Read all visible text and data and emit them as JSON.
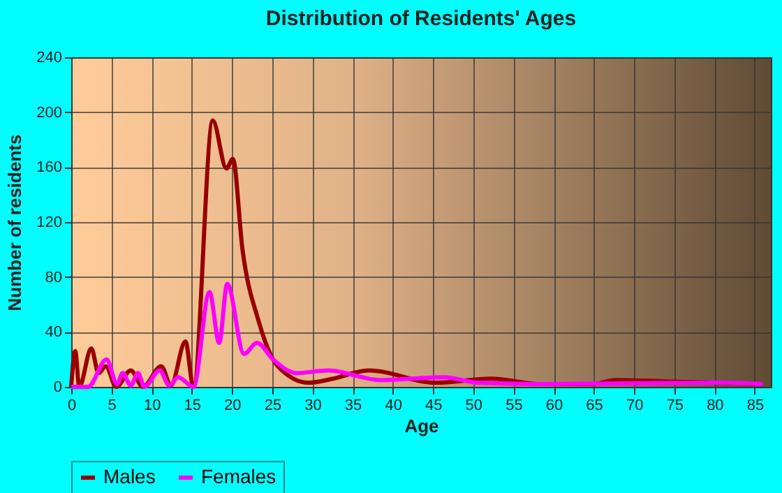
{
  "chart_data": {
    "type": "line",
    "title": "Distribution of Residents' Ages",
    "xlabel": "Age",
    "ylabel": "Number of residents",
    "xlim": [
      0,
      87
    ],
    "xticks": [
      0,
      5,
      10,
      15,
      20,
      25,
      30,
      35,
      40,
      45,
      50,
      55,
      60,
      65,
      70,
      75,
      80,
      85
    ],
    "ylim": [
      0,
      240
    ],
    "yticks": [
      0,
      40,
      80,
      120,
      160,
      200,
      240
    ],
    "grid": true,
    "legend": "bottom",
    "line_style": "solid",
    "marker": "none",
    "series": [
      {
        "name": "Males",
        "color": "#990000",
        "x": [
          0,
          0.5,
          1,
          2.5,
          3.4,
          4.3,
          5.6,
          7.4,
          8.9,
          11.2,
          12.4,
          14.2,
          15.2,
          17.6,
          19.3,
          20.1,
          21.3,
          23.3,
          25.7,
          29.5,
          32.6,
          37,
          45.3,
          52.2,
          58.5,
          64.8,
          67.7,
          74,
          86
        ],
        "values": [
          0,
          26,
          0,
          28,
          10,
          15,
          0,
          12,
          0,
          15,
          1,
          33,
          0,
          194,
          159,
          166,
          100,
          48,
          15,
          3,
          6,
          12,
          3,
          6,
          2,
          2,
          5,
          4,
          2
        ]
      },
      {
        "name": "Females",
        "color": "#ff00ff",
        "x": [
          0,
          2.1,
          4.4,
          5.7,
          6.4,
          7.4,
          8.3,
          9.1,
          11,
          12.2,
          13.3,
          15.2,
          17.2,
          18.4,
          19.4,
          21.5,
          23.1,
          25.1,
          28,
          32,
          38.4,
          46.4,
          50.5,
          58.5,
          80,
          86
        ],
        "values": [
          0,
          0,
          20,
          2,
          10,
          1,
          10,
          0,
          12,
          1,
          7,
          0,
          69,
          32,
          75,
          24,
          32,
          20,
          10,
          12,
          5,
          7,
          3,
          2,
          3,
          2
        ]
      }
    ]
  }
}
